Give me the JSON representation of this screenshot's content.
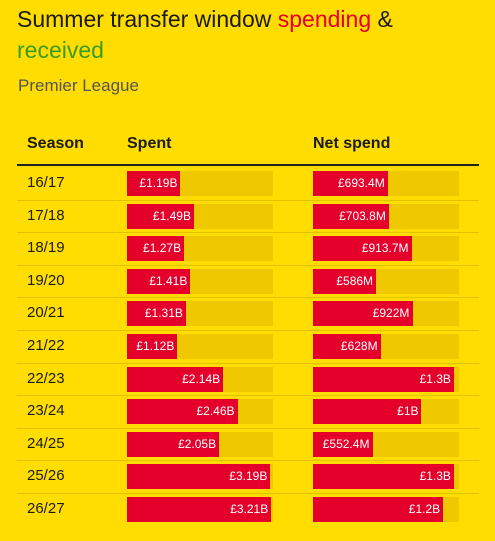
{
  "title": {
    "part1": "Summer transfer window",
    "spending": "spending",
    "amp": "&",
    "received": "received"
  },
  "subtitle": "Premier League",
  "table": {
    "columns": [
      "Season",
      "Spent",
      "Net spend"
    ],
    "spent_xlim": [
      0,
      3.25
    ],
    "net_xlim": [
      0,
      1350
    ],
    "rows": [
      {
        "season": "16/17",
        "spent": 1.19,
        "spent_label": "£1.19B",
        "net": 693.4,
        "net_label": "£693.4M"
      },
      {
        "season": "17/18",
        "spent": 1.49,
        "spent_label": "£1.49B",
        "net": 703.8,
        "net_label": "£703.8M"
      },
      {
        "season": "18/19",
        "spent": 1.27,
        "spent_label": "£1.27B",
        "net": 913.7,
        "net_label": "£913.7M"
      },
      {
        "season": "19/20",
        "spent": 1.41,
        "spent_label": "£1.41B",
        "net": 586,
        "net_label": "£586M"
      },
      {
        "season": "20/21",
        "spent": 1.31,
        "spent_label": "£1.31B",
        "net": 922,
        "net_label": "£922M"
      },
      {
        "season": "21/22",
        "spent": 1.12,
        "spent_label": "£1.12B",
        "net": 628,
        "net_label": "£628M"
      },
      {
        "season": "22/23",
        "spent": 2.14,
        "spent_label": "£2.14B",
        "net": 1300,
        "net_label": "£1.3B"
      },
      {
        "season": "23/24",
        "spent": 2.46,
        "spent_label": "£2.46B",
        "net": 1000,
        "net_label": "£1B"
      },
      {
        "season": "24/25",
        "spent": 2.05,
        "spent_label": "£2.05B",
        "net": 552.4,
        "net_label": "£552.4M"
      },
      {
        "season": "25/26",
        "spent": 3.19,
        "spent_label": "£3.19B",
        "net": 1300,
        "net_label": "£1.3B"
      },
      {
        "season": "26/27",
        "spent": 3.21,
        "spent_label": "£3.21B",
        "net": 1200,
        "net_label": "£1.2B"
      }
    ]
  }
}
